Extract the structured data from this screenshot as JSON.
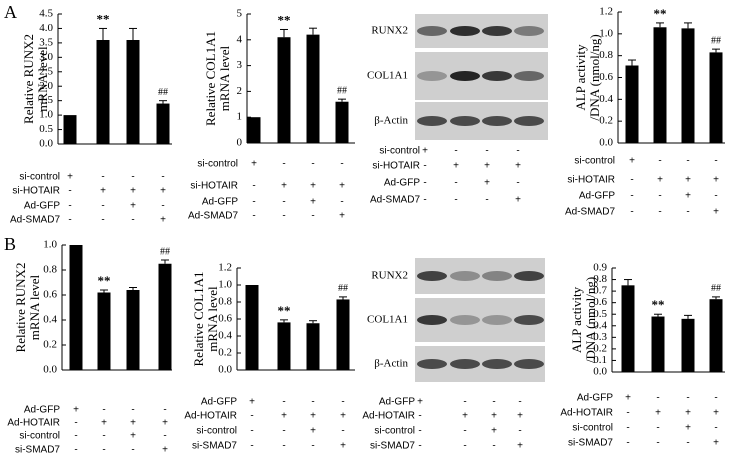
{
  "panel_labels": [
    "A",
    "B"
  ],
  "chart_data": [
    {
      "type": "bar",
      "y_label": [
        "Relative RUNX2",
        "mRNA level"
      ],
      "values": [
        1.0,
        3.6,
        3.6,
        1.4
      ],
      "errors": [
        null,
        0.4,
        0.4,
        0.1
      ],
      "bar_labels": [
        null,
        "**",
        null,
        "##"
      ],
      "color": "#000000",
      "ylim": [
        0,
        4.5
      ],
      "yticks": [
        {
          "value": 0,
          "label": "0.0"
        },
        0.5,
        {
          "value": 1,
          "label": "1.0"
        },
        1.5,
        {
          "value": 2,
          "label": "2.0"
        },
        2.5,
        {
          "value": 3,
          "label": "3.0"
        },
        3.5,
        {
          "value": 4,
          "label": "4.0"
        },
        4.5
      ],
      "conditions": [
        {
          "label": "si-control",
          "signs": [
            "+",
            "-",
            "-",
            "-"
          ]
        },
        {
          "label": "si-HOTAIR",
          "signs": [
            "-",
            "+",
            "+",
            "+"
          ]
        },
        {
          "label": "Ad-GFP",
          "signs": [
            "-",
            "-",
            "+",
            "-"
          ]
        },
        {
          "label": "Ad-SMAD7",
          "signs": [
            "-",
            "-",
            "-",
            "+"
          ]
        }
      ]
    },
    {
      "type": "bar",
      "y_label": [
        "Relative COL1A1",
        "mRNA level"
      ],
      "values": [
        1.0,
        4.1,
        4.2,
        1.6
      ],
      "errors": [
        null,
        0.3,
        0.25,
        0.1
      ],
      "bar_labels": [
        null,
        "**",
        null,
        "##"
      ],
      "color": "#000000",
      "ylim": [
        0,
        5
      ],
      "yticks": [
        0,
        1,
        2,
        3,
        4,
        5
      ],
      "conditions": [
        {
          "label": "si-control",
          "signs": [
            "+",
            "-",
            "-",
            "-"
          ]
        },
        {
          "label": "si-HOTAIR",
          "signs": [
            "-",
            "+",
            "+",
            "+"
          ]
        },
        {
          "label": "Ad-GFP",
          "signs": [
            "-",
            "-",
            "+",
            "-"
          ]
        },
        {
          "label": "Ad-SMAD7",
          "signs": [
            "-",
            "-",
            "-",
            "+"
          ]
        }
      ]
    },
    {
      "type": "bar",
      "y_label": [
        "ALP activity",
        "/DNA (nmol/ng)"
      ],
      "values": [
        0.71,
        1.06,
        1.05,
        0.83
      ],
      "errors": [
        0.05,
        0.04,
        0.05,
        0.03
      ],
      "bar_labels": [
        null,
        "**",
        null,
        "##"
      ],
      "color": "#000000",
      "ylim": [
        0,
        1.2
      ],
      "yticks": [
        {
          "value": 0,
          "label": "0.0"
        },
        0.2,
        0.4,
        0.6,
        0.8,
        {
          "value": 1,
          "label": "1.0"
        },
        1.2
      ],
      "conditions": [
        {
          "label": "si-control",
          "signs": [
            "+",
            "-",
            "-",
            "-"
          ]
        },
        {
          "label": "si-HOTAIR",
          "signs": [
            "-",
            "+",
            "+",
            "+"
          ]
        },
        {
          "label": "Ad-GFP",
          "signs": [
            "-",
            "-",
            "+",
            "-"
          ]
        },
        {
          "label": "Ad-SMAD7",
          "signs": [
            "-",
            "-",
            "-",
            "+"
          ]
        }
      ]
    },
    {
      "type": "bar",
      "y_label": [
        "Relative RUNX2",
        "mRNA level"
      ],
      "values": [
        1.0,
        0.62,
        0.64,
        0.85
      ],
      "errors": [
        null,
        0.02,
        0.02,
        0.03
      ],
      "bar_labels": [
        null,
        "**",
        null,
        "##"
      ],
      "color": "#000000",
      "ylim": [
        0,
        1.0
      ],
      "yticks": [
        {
          "value": 0,
          "label": "0.0"
        },
        0.2,
        0.4,
        0.6,
        0.8,
        {
          "value": 1,
          "label": "1.0"
        }
      ],
      "conditions": [
        {
          "label": "Ad-GFP",
          "signs": [
            "+",
            "-",
            "-",
            "-"
          ]
        },
        {
          "label": "Ad-HOTAIR",
          "signs": [
            "-",
            "+",
            "+",
            "+"
          ]
        },
        {
          "label": "si-control",
          "signs": [
            "-",
            "-",
            "+",
            "-"
          ]
        },
        {
          "label": "si-SMAD7",
          "signs": [
            "-",
            "-",
            "-",
            "+"
          ]
        }
      ]
    },
    {
      "type": "bar",
      "y_label": [
        "Relative COL1A1",
        "mRNA level"
      ],
      "values": [
        1.0,
        0.56,
        0.55,
        0.83
      ],
      "errors": [
        null,
        0.03,
        0.03,
        0.03
      ],
      "bar_labels": [
        null,
        "**",
        null,
        "##"
      ],
      "color": "#000000",
      "ylim": [
        0,
        1.2
      ],
      "yticks": [
        {
          "value": 0,
          "label": "0.0"
        },
        0.2,
        0.4,
        0.6,
        0.8,
        {
          "value": 1,
          "label": "1.0"
        },
        1.2
      ],
      "conditions": [
        {
          "label": "Ad-GFP",
          "signs": [
            "+",
            "-",
            "-",
            "-"
          ]
        },
        {
          "label": "Ad-HOTAIR",
          "signs": [
            "-",
            "+",
            "+",
            "+"
          ]
        },
        {
          "label": "si-control",
          "signs": [
            "-",
            "-",
            "+",
            "-"
          ]
        },
        {
          "label": "si-SMAD7",
          "signs": [
            "-",
            "-",
            "-",
            "+"
          ]
        }
      ]
    },
    {
      "type": "bar",
      "y_label": [
        "ALP activity",
        "/DNA (nmol/ng)"
      ],
      "values": [
        0.75,
        0.48,
        0.46,
        0.63
      ],
      "errors": [
        0.05,
        0.02,
        0.03,
        0.02
      ],
      "bar_labels": [
        null,
        "**",
        null,
        "##"
      ],
      "color": "#000000",
      "ylim": [
        0,
        0.9
      ],
      "yticks": [
        {
          "value": 0,
          "label": "0.0"
        },
        0.1,
        0.2,
        0.3,
        0.4,
        0.5,
        0.6,
        0.7,
        0.8,
        0.9
      ],
      "conditions": [
        {
          "label": "Ad-GFP",
          "signs": [
            "+",
            "-",
            "-",
            "-"
          ]
        },
        {
          "label": "Ad-HOTAIR",
          "signs": [
            "-",
            "+",
            "+",
            "+"
          ]
        },
        {
          "label": "si-control",
          "signs": [
            "-",
            "-",
            "+",
            "-"
          ]
        },
        {
          "label": "si-SMAD7",
          "signs": [
            "-",
            "-",
            "-",
            "+"
          ]
        }
      ]
    }
  ],
  "blots": [
    {
      "bands": [
        "RUNX2",
        "COL1A1",
        "β-Actin"
      ],
      "conditions": [
        {
          "label": "si-control",
          "signs": [
            "+",
            "-",
            "-",
            "-"
          ]
        },
        {
          "label": "si-HOTAIR",
          "signs": [
            "-",
            "+",
            "+",
            "+"
          ]
        },
        {
          "label": "Ad-GFP",
          "signs": [
            "-",
            "-",
            "+",
            "-"
          ]
        },
        {
          "label": "Ad-SMAD7",
          "signs": [
            "-",
            "-",
            "-",
            "+"
          ]
        }
      ]
    },
    {
      "bands": [
        "RUNX2",
        "COL1A1",
        "β-Actin"
      ],
      "conditions": [
        {
          "label": "Ad-GFP",
          "signs": [
            "+",
            "-",
            "-",
            "-"
          ]
        },
        {
          "label": "Ad-HOTAIR",
          "signs": [
            "-",
            "+",
            "+",
            "+"
          ]
        },
        {
          "label": "si-control",
          "signs": [
            "-",
            "-",
            "+",
            "-"
          ]
        },
        {
          "label": "si-SMAD7",
          "signs": [
            "-",
            "-",
            "-",
            "+"
          ]
        }
      ]
    }
  ]
}
